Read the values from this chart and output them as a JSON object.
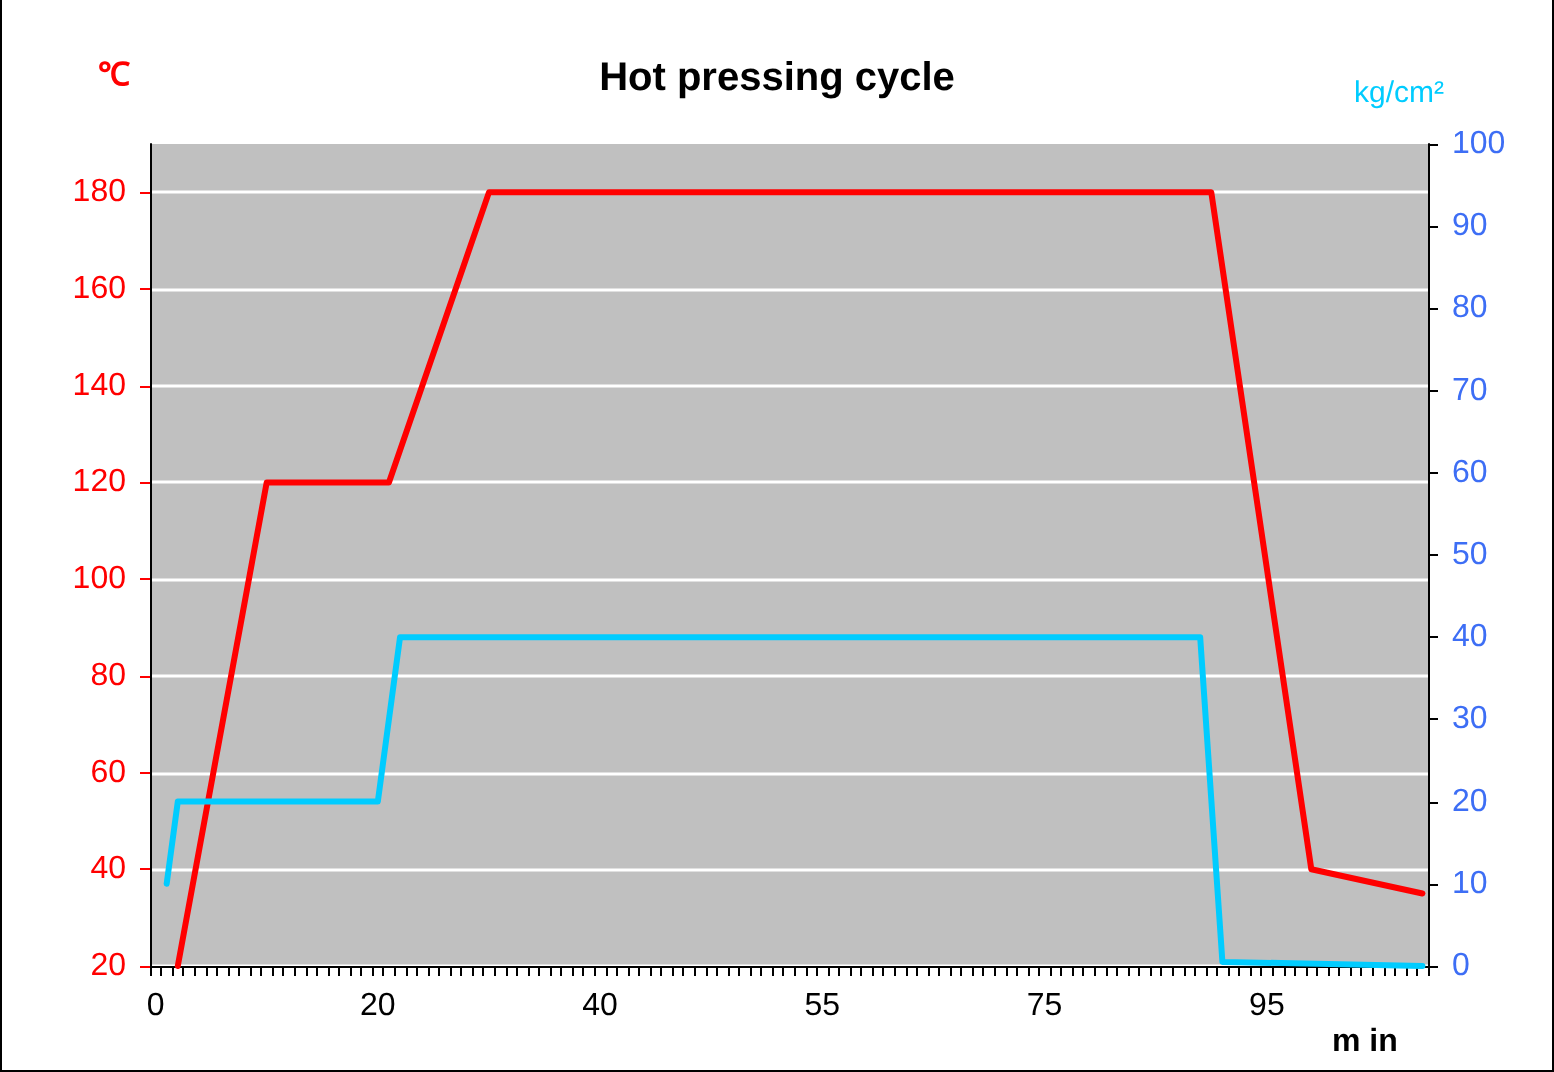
{
  "chart_data": {
    "type": "line",
    "title": "Hot pressing cycle",
    "xlabel": "m in",
    "ylabel": "℃",
    "y2label": "kg/cm²",
    "categories": [
      "0",
      null,
      null,
      null,
      null,
      null,
      null,
      null,
      null,
      null,
      null,
      null,
      null,
      null,
      null,
      null,
      null,
      null,
      null,
      null,
      "20",
      null,
      null,
      null,
      null,
      null,
      null,
      null,
      null,
      null,
      null,
      null,
      null,
      null,
      null,
      null,
      null,
      null,
      null,
      null,
      "40",
      null,
      null,
      null,
      null,
      null,
      null,
      null,
      null,
      null,
      null,
      null,
      null,
      null,
      null,
      null,
      null,
      null,
      null,
      null,
      "55",
      null,
      null,
      null,
      null,
      null,
      null,
      null,
      null,
      null,
      null,
      null,
      null,
      null,
      null,
      null,
      null,
      null,
      null,
      null,
      "75",
      null,
      null,
      null,
      null,
      null,
      null,
      null,
      null,
      null,
      null,
      null,
      null,
      null,
      null,
      null,
      null,
      null,
      null,
      null,
      "95",
      null,
      null,
      null,
      null,
      null,
      null,
      null,
      null,
      null,
      null,
      null,
      null,
      null,
      null
    ],
    "ylim": [
      20,
      190
    ],
    "yticks": [
      20,
      40,
      60,
      80,
      100,
      120,
      140,
      160,
      180
    ],
    "y2lim": [
      0,
      100
    ],
    "y2ticks": [
      0,
      10,
      20,
      30,
      40,
      50,
      60,
      70,
      80,
      90,
      100
    ],
    "grid": "y",
    "marker": "none",
    "line_style": "solid",
    "series": [
      {
        "color": "#ff0000",
        "values": [
          null,
          null,
          20,
          null,
          null,
          null,
          null,
          null,
          null,
          null,
          120,
          null,
          null,
          null,
          null,
          null,
          null,
          null,
          null,
          null,
          null,
          120,
          null,
          null,
          null,
          null,
          null,
          null,
          null,
          null,
          180,
          null,
          null,
          null,
          null,
          null,
          null,
          null,
          null,
          null,
          null,
          null,
          null,
          null,
          null,
          null,
          null,
          null,
          null,
          null,
          null,
          null,
          null,
          null,
          null,
          null,
          null,
          null,
          null,
          null,
          null,
          null,
          null,
          null,
          null,
          null,
          null,
          null,
          null,
          null,
          null,
          null,
          null,
          null,
          null,
          null,
          null,
          null,
          null,
          null,
          null,
          null,
          null,
          null,
          null,
          null,
          null,
          null,
          null,
          null,
          null,
          null,
          null,
          null,
          null,
          180,
          null,
          null,
          null,
          null,
          null,
          null,
          null,
          null,
          40,
          null,
          null,
          null,
          null,
          null,
          null,
          null,
          null,
          null,
          35
        ]
      },
      {
        "color": "#00ccff",
        "axis": "y2",
        "values": [
          null,
          10,
          20,
          null,
          null,
          null,
          null,
          null,
          null,
          null,
          null,
          null,
          null,
          null,
          null,
          null,
          null,
          null,
          null,
          null,
          20,
          null,
          40,
          null,
          null,
          null,
          null,
          null,
          null,
          null,
          null,
          null,
          null,
          null,
          null,
          null,
          null,
          null,
          null,
          null,
          null,
          null,
          null,
          null,
          null,
          null,
          null,
          null,
          null,
          null,
          null,
          null,
          null,
          null,
          null,
          null,
          null,
          null,
          null,
          null,
          null,
          null,
          null,
          null,
          null,
          null,
          null,
          null,
          null,
          null,
          null,
          null,
          null,
          null,
          null,
          null,
          null,
          null,
          null,
          null,
          null,
          null,
          null,
          null,
          null,
          null,
          null,
          null,
          null,
          null,
          null,
          null,
          null,
          null,
          40,
          null,
          0.5,
          null,
          null,
          null,
          null,
          null,
          null,
          null,
          null,
          null,
          null,
          null,
          null,
          null,
          null,
          null,
          null,
          null,
          0
        ]
      }
    ]
  }
}
